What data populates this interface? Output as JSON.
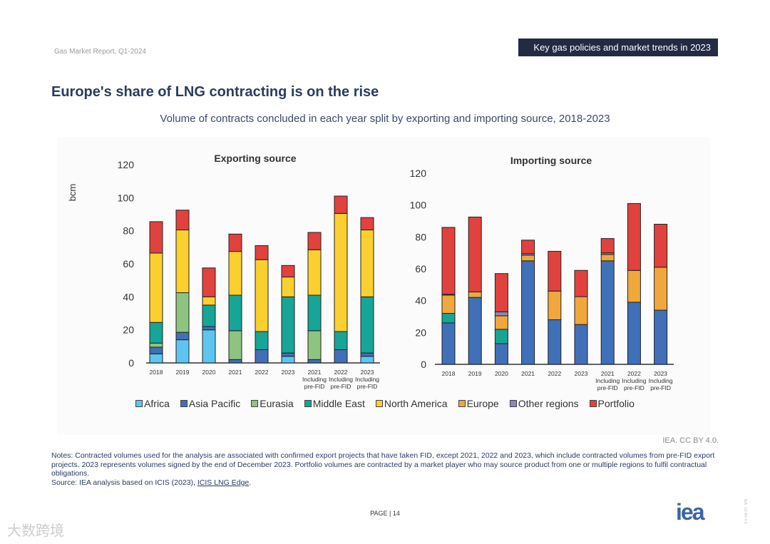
{
  "header": {
    "report_name": "Gas Market Report, Q1-2024",
    "section_tag": "Key gas policies and market trends in 2023"
  },
  "page_title": "Europe's share of LNG contracting is on the rise",
  "chart_subtitle": "Volume of contracts concluded in each year split by exporting and importing source, 2018-2023",
  "colors": {
    "Africa": "#5ec5ef",
    "Asia Pacific": "#4070b8",
    "Eurasia": "#8dc47f",
    "Middle East": "#16a596",
    "North America": "#fbd02e",
    "Europe": "#f0a73c",
    "Other regions": "#8c86b9",
    "Portfolio": "#e1423d"
  },
  "legend": [
    "Africa",
    "Asia Pacific",
    "Eurasia",
    "Middle East",
    "North America",
    "Europe",
    "Other regions",
    "Portfolio"
  ],
  "chart_data": [
    {
      "type": "bar",
      "stacked": true,
      "title": "Exporting source",
      "ylabel": "bcm",
      "ylim": [
        0,
        120
      ],
      "yticks": [
        0,
        20,
        40,
        60,
        80,
        100,
        120
      ],
      "categories": [
        "2018",
        "2019",
        "2020",
        "2021",
        "2022",
        "2023",
        "2021 Including pre-FID",
        "2022 Including pre-FID",
        "2023 Including pre-FID"
      ],
      "category_lines": [
        [
          "2018"
        ],
        [
          "2019"
        ],
        [
          "2020"
        ],
        [
          "2021"
        ],
        [
          "2022"
        ],
        [
          "2023"
        ],
        [
          "2021",
          "Including",
          "pre-FID"
        ],
        [
          "2022",
          "Including",
          "pre-FID"
        ],
        [
          "2023",
          "Including",
          "pre-FID"
        ]
      ],
      "series": [
        {
          "name": "Africa",
          "values": [
            5.5,
            14,
            20,
            0,
            0,
            4,
            0,
            0,
            4
          ]
        },
        {
          "name": "Asia Pacific",
          "values": [
            4,
            4.5,
            2,
            2,
            8,
            2,
            2,
            8,
            2
          ]
        },
        {
          "name": "Eurasia",
          "values": [
            2.5,
            24,
            0,
            17.5,
            0,
            0,
            17.5,
            0,
            0
          ]
        },
        {
          "name": "Middle East",
          "values": [
            12.5,
            0,
            13,
            21.5,
            11,
            34,
            21.5,
            11,
            34
          ]
        },
        {
          "name": "North America",
          "values": [
            42,
            38,
            5,
            26.5,
            43.5,
            12,
            27.5,
            71.5,
            40.5
          ]
        },
        {
          "name": "Europe",
          "values": [
            0,
            0,
            0,
            0,
            0,
            0,
            0,
            0,
            0
          ]
        },
        {
          "name": "Other regions",
          "values": [
            0,
            0,
            0,
            0,
            0,
            0,
            0,
            0,
            0
          ]
        },
        {
          "name": "Portfolio",
          "values": [
            19,
            12,
            17.5,
            10.5,
            8.5,
            7,
            10.5,
            10.5,
            7.5
          ]
        }
      ]
    },
    {
      "type": "bar",
      "stacked": true,
      "title": "Importing source",
      "ylabel": "",
      "ylim": [
        0,
        120
      ],
      "yticks": [
        0,
        20,
        40,
        60,
        80,
        100,
        120
      ],
      "categories": [
        "2018",
        "2019",
        "2020",
        "2021",
        "2022",
        "2023",
        "2021 Including pre-FID",
        "2022 Including pre-FID",
        "2023 Including pre-FID"
      ],
      "category_lines": [
        [
          "2018"
        ],
        [
          "2019"
        ],
        [
          "2020"
        ],
        [
          "2021"
        ],
        [
          "2022"
        ],
        [
          "2023"
        ],
        [
          "2021",
          "Including",
          "pre-FID"
        ],
        [
          "2022",
          "Including",
          "pre-FID"
        ],
        [
          "2023",
          "Including",
          "pre-FID"
        ]
      ],
      "series": [
        {
          "name": "Africa",
          "values": [
            0,
            0,
            0,
            0,
            0,
            0,
            0,
            0,
            0
          ]
        },
        {
          "name": "Asia Pacific",
          "values": [
            26,
            42,
            13,
            65,
            28,
            25,
            65,
            39,
            34
          ]
        },
        {
          "name": "Eurasia",
          "values": [
            0,
            0,
            0,
            0,
            0,
            0,
            0,
            0,
            0
          ]
        },
        {
          "name": "Middle East",
          "values": [
            6,
            0,
            9,
            0,
            0,
            0,
            0,
            0,
            0
          ]
        },
        {
          "name": "North America",
          "values": [
            0,
            0,
            0,
            0,
            0,
            0,
            0,
            0,
            0
          ]
        },
        {
          "name": "Europe",
          "values": [
            11.5,
            3.5,
            8.5,
            3.5,
            18,
            17.5,
            4,
            20,
            27
          ]
        },
        {
          "name": "Other regions",
          "values": [
            0.5,
            0,
            2.5,
            1,
            0,
            0,
            1,
            0,
            0
          ]
        },
        {
          "name": "Portfolio",
          "values": [
            42,
            47,
            24,
            8.5,
            25,
            16.5,
            9,
            42,
            27
          ]
        }
      ]
    }
  ],
  "credit": "IEA. CC BY 4.0.",
  "notes": {
    "text": "Notes: Contracted volumes used for the analysis are associated with confirmed export projects that have taken FID, except 2021, 2022 and 2023, which include contracted volumes from pre-FID export projects. 2023 represents volumes signed by the end of December 2023. Portfolio volumes are contracted by a market player who may source product from one or multiple regions to fulfil contractual obligations.",
    "source_prefix": "Source: IEA analysis based on ICIS (2023), ",
    "source_link": "ICIS LNG Edge",
    "source_suffix": "."
  },
  "footer": {
    "page_label": "PAGE | 14",
    "logo_text": "iea",
    "watermark": "大数跨境",
    "side_license": "IEA. CC BY 4.0."
  }
}
